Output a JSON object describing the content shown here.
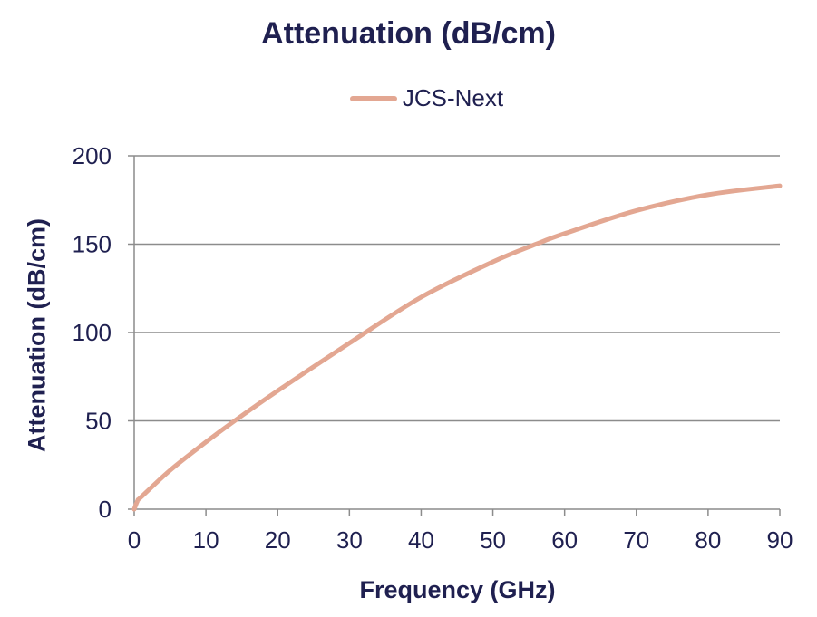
{
  "chart_data": {
    "type": "line",
    "title": "Attenuation (dB/cm)",
    "xlabel": "Frequency (GHz)",
    "ylabel": "Attenuation (dB/cm)",
    "xlim": [
      0,
      90
    ],
    "ylim": [
      0,
      200
    ],
    "xticks": [
      0,
      10,
      20,
      30,
      40,
      50,
      60,
      70,
      80,
      90
    ],
    "yticks": [
      0,
      50,
      100,
      150,
      200
    ],
    "grid": "horizontal",
    "legend_position": "top",
    "series": [
      {
        "name": "JCS-Next",
        "color": "#e3a792",
        "x": [
          0,
          0.5,
          1,
          5,
          10,
          14,
          20,
          30,
          40,
          50,
          56,
          60,
          70,
          80,
          90
        ],
        "y": [
          0,
          5,
          7,
          22,
          38,
          50,
          67,
          94,
          120,
          140,
          150,
          156,
          169,
          178,
          183
        ]
      }
    ]
  }
}
